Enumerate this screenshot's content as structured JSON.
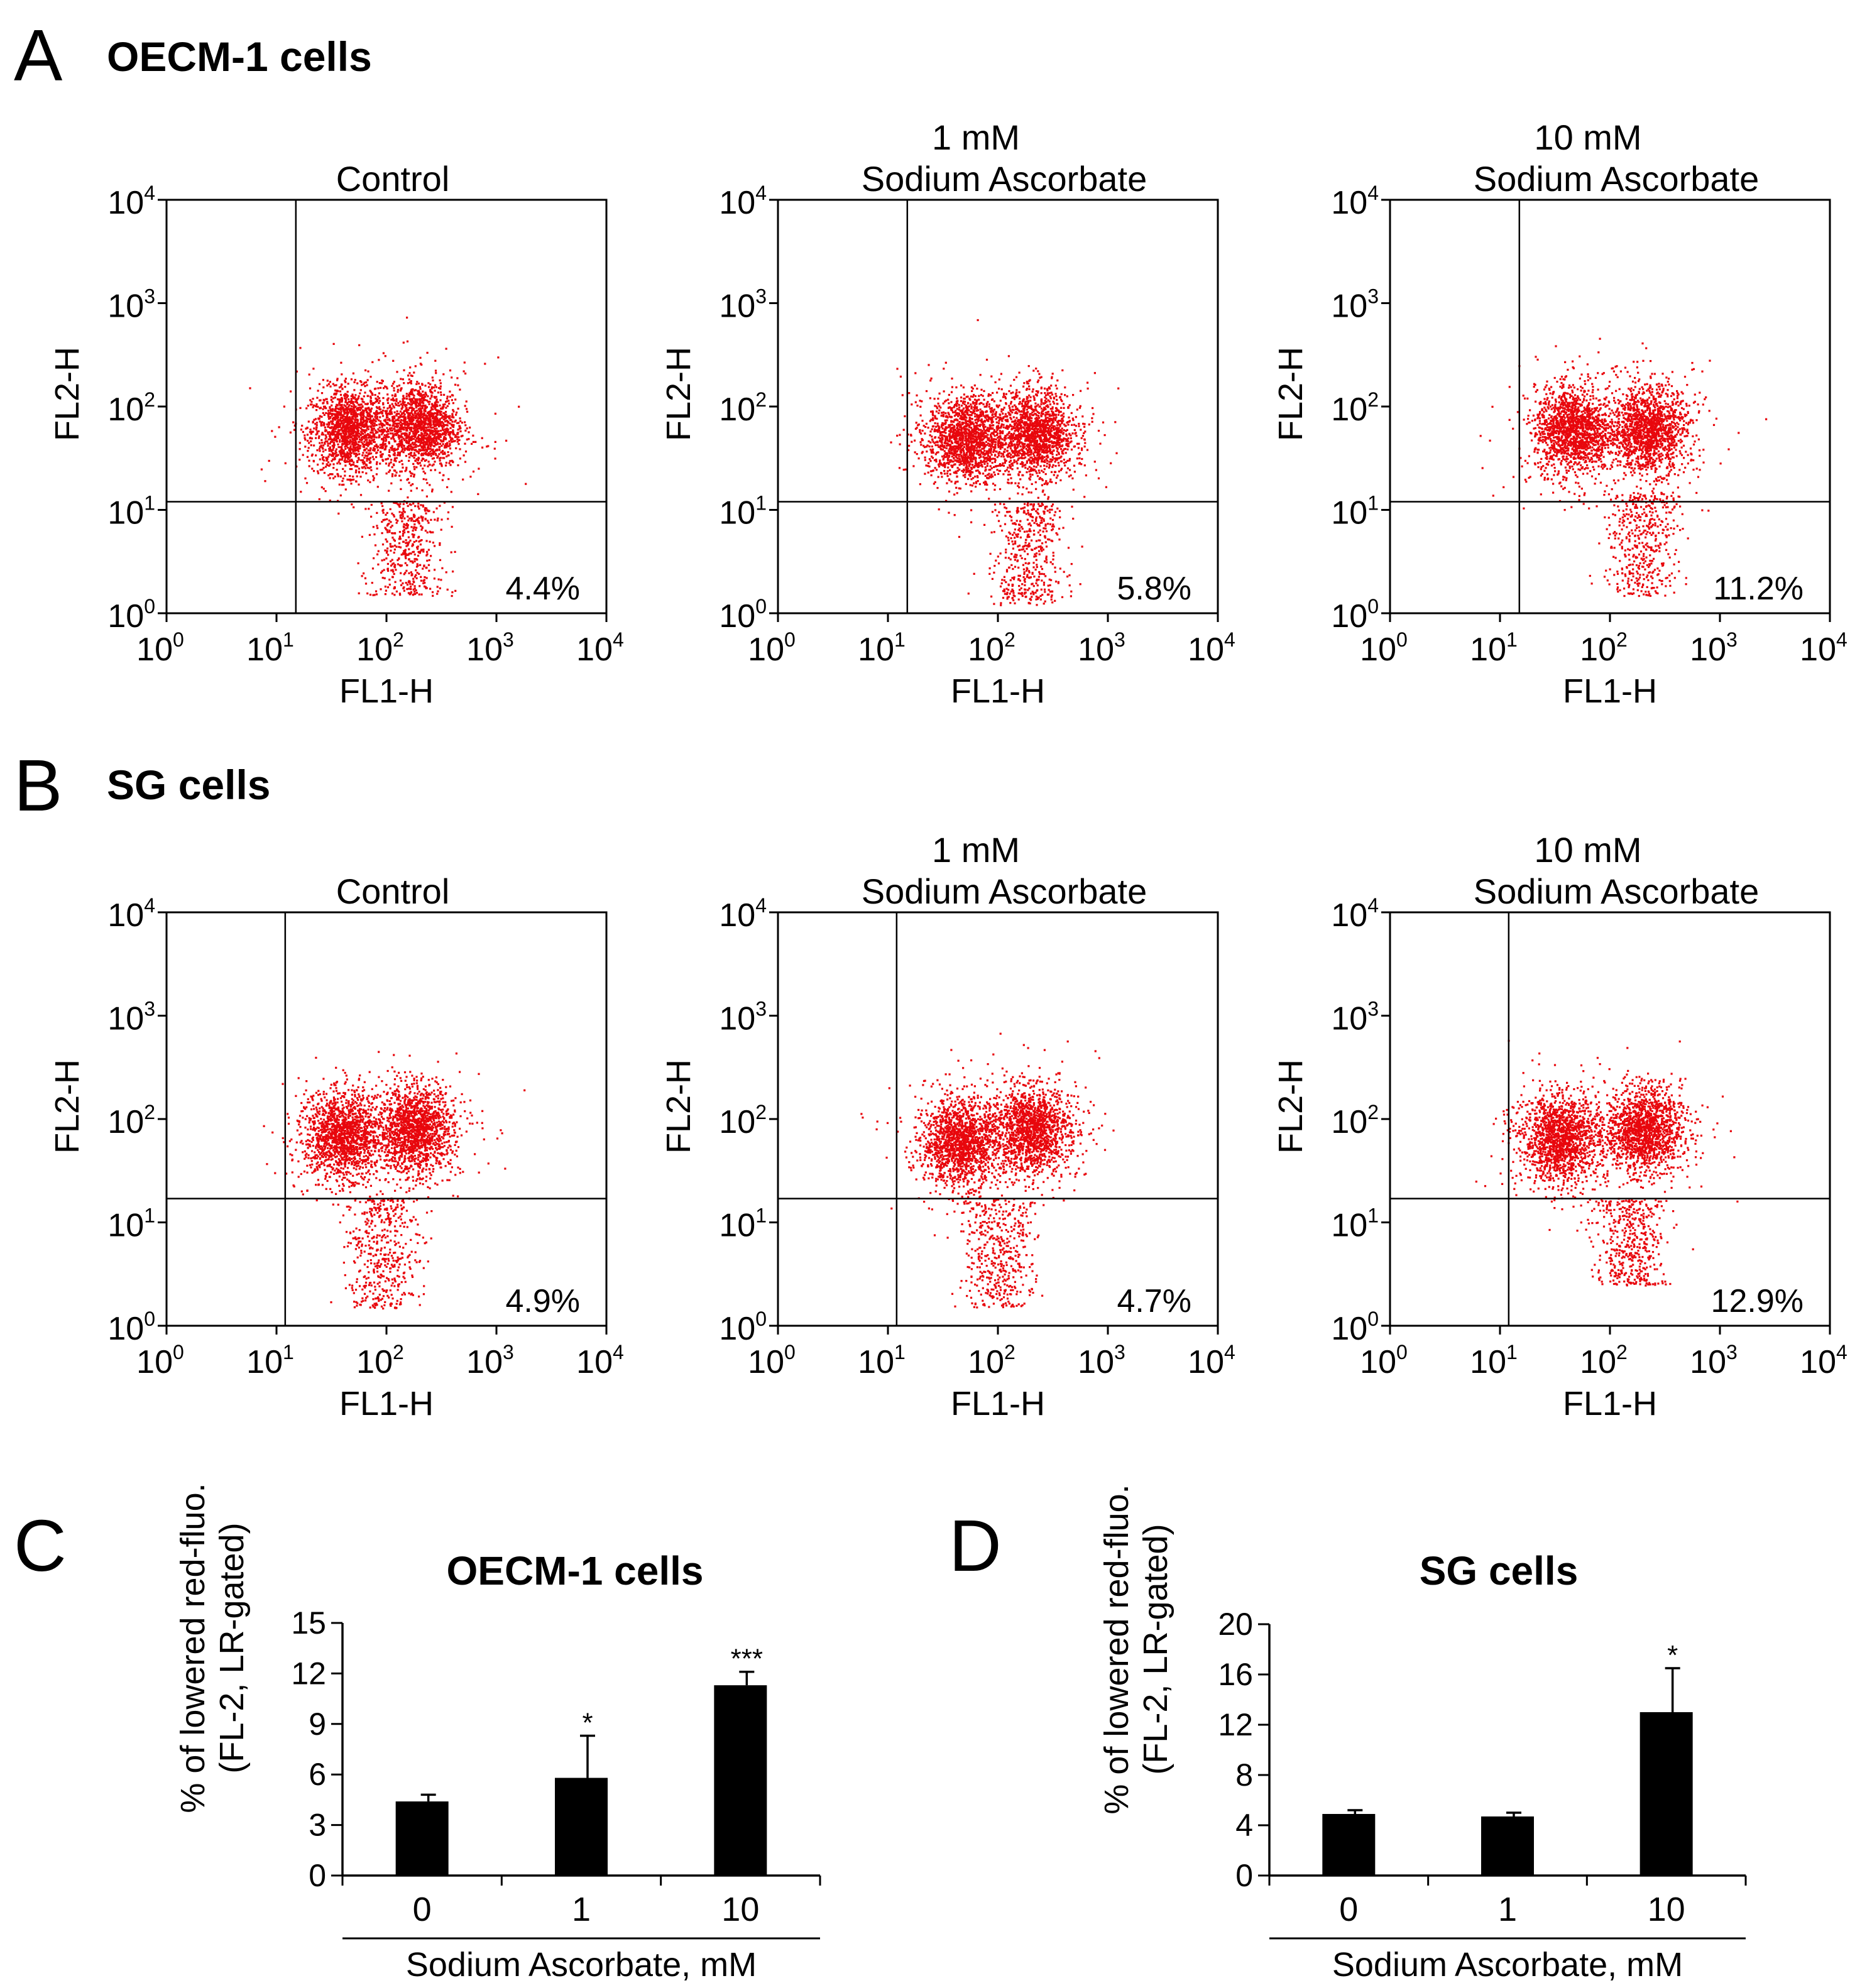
{
  "panels": {
    "a": {
      "letter": "A",
      "title": "OECM-1 cells"
    },
    "b": {
      "letter": "B",
      "title": "SG cells"
    },
    "c": {
      "letter": "C"
    },
    "d": {
      "letter": "D"
    }
  },
  "chart_data": [
    {
      "type": "scatter",
      "panel": "A",
      "title": "Control",
      "title_line1": "",
      "xlabel": "FL1-H",
      "ylabel": "FL2-H",
      "scale": "log",
      "xlim": [
        1,
        10000
      ],
      "ylim": [
        1,
        10000
      ],
      "x_ticks": [
        "10",
        "10",
        "10",
        "10",
        "10"
      ],
      "x_tick_exponents": [
        "0",
        "1",
        "2",
        "3",
        "4"
      ],
      "y_ticks": [
        "10",
        "10",
        "10",
        "10",
        "10"
      ],
      "y_tick_exponents": [
        "0",
        "1",
        "2",
        "3",
        "4"
      ],
      "quadrant_gate": {
        "x": 15,
        "y": 12
      },
      "lower_right_percent": "4.4%",
      "color": "#e8070d",
      "populations": [
        {
          "x": 45,
          "y": 60
        },
        {
          "x": 200,
          "y": 65
        }
      ],
      "tail": {
        "x": 150,
        "y_min": 1.5,
        "y_max": 12
      }
    },
    {
      "type": "scatter",
      "panel": "A",
      "title": "Sodium Ascorbate",
      "title_line1": "1 mM",
      "xlabel": "FL1-H",
      "ylabel": "FL2-H",
      "scale": "log",
      "xlim": [
        1,
        10000
      ],
      "ylim": [
        1,
        10000
      ],
      "x_ticks": [
        "10",
        "10",
        "10",
        "10",
        "10"
      ],
      "x_tick_exponents": [
        "0",
        "1",
        "2",
        "3",
        "4"
      ],
      "y_ticks": [
        "10",
        "10",
        "10",
        "10",
        "10"
      ],
      "y_tick_exponents": [
        "0",
        "1",
        "2",
        "3",
        "4"
      ],
      "quadrant_gate": {
        "x": 15,
        "y": 12
      },
      "lower_right_percent": "5.8%",
      "color": "#e8070d",
      "populations": [
        {
          "x": 50,
          "y": 50
        },
        {
          "x": 220,
          "y": 55
        }
      ],
      "tail": {
        "x": 180,
        "y_min": 1.2,
        "y_max": 12
      }
    },
    {
      "type": "scatter",
      "panel": "A",
      "title": "Sodium Ascorbate",
      "title_line1": "10 mM",
      "xlabel": "FL1-H",
      "ylabel": "FL2-H",
      "scale": "log",
      "xlim": [
        1,
        10000
      ],
      "ylim": [
        1,
        10000
      ],
      "x_ticks": [
        "10",
        "10",
        "10",
        "10",
        "10"
      ],
      "x_tick_exponents": [
        "0",
        "1",
        "2",
        "3",
        "4"
      ],
      "y_ticks": [
        "10",
        "10",
        "10",
        "10",
        "10"
      ],
      "y_tick_exponents": [
        "0",
        "1",
        "2",
        "3",
        "4"
      ],
      "quadrant_gate": {
        "x": 15,
        "y": 12
      },
      "lower_right_percent": "11.2%",
      "color": "#e8070d",
      "populations": [
        {
          "x": 45,
          "y": 60
        },
        {
          "x": 220,
          "y": 60
        }
      ],
      "tail": {
        "x": 200,
        "y_min": 1.5,
        "y_max": 15
      }
    },
    {
      "type": "scatter",
      "panel": "B",
      "title": "Control",
      "title_line1": "",
      "xlabel": "FL1-H",
      "ylabel": "FL2-H",
      "scale": "log",
      "xlim": [
        1,
        10000
      ],
      "ylim": [
        1,
        10000
      ],
      "x_ticks": [
        "10",
        "10",
        "10",
        "10",
        "10"
      ],
      "x_tick_exponents": [
        "0",
        "1",
        "2",
        "3",
        "4"
      ],
      "y_ticks": [
        "10",
        "10",
        "10",
        "10",
        "10"
      ],
      "y_tick_exponents": [
        "0",
        "1",
        "2",
        "3",
        "4"
      ],
      "quadrant_gate": {
        "x": 12,
        "y": 17
      },
      "lower_right_percent": "4.9%",
      "color": "#e8070d",
      "populations": [
        {
          "x": 40,
          "y": 70
        },
        {
          "x": 180,
          "y": 80
        }
      ],
      "tail": {
        "x": 90,
        "y_min": 1.5,
        "y_max": 17
      }
    },
    {
      "type": "scatter",
      "panel": "B",
      "title": "Sodium Ascorbate",
      "title_line1": "1 mM",
      "xlabel": "FL1-H",
      "ylabel": "FL2-H",
      "scale": "log",
      "xlim": [
        1,
        10000
      ],
      "ylim": [
        1,
        10000
      ],
      "x_ticks": [
        "10",
        "10",
        "10",
        "10",
        "10"
      ],
      "x_tick_exponents": [
        "0",
        "1",
        "2",
        "3",
        "4"
      ],
      "y_ticks": [
        "10",
        "10",
        "10",
        "10",
        "10"
      ],
      "y_tick_exponents": [
        "0",
        "1",
        "2",
        "3",
        "4"
      ],
      "quadrant_gate": {
        "x": 12,
        "y": 17
      },
      "lower_right_percent": "4.7%",
      "color": "#e8070d",
      "populations": [
        {
          "x": 45,
          "y": 60
        },
        {
          "x": 200,
          "y": 80
        }
      ],
      "tail": {
        "x": 100,
        "y_min": 1.5,
        "y_max": 17
      }
    },
    {
      "type": "scatter",
      "panel": "B",
      "title": "Sodium Ascorbate",
      "title_line1": "10 mM",
      "xlabel": "FL1-H",
      "ylabel": "FL2-H",
      "scale": "log",
      "xlim": [
        1,
        10000
      ],
      "ylim": [
        1,
        10000
      ],
      "x_ticks": [
        "10",
        "10",
        "10",
        "10",
        "10"
      ],
      "x_tick_exponents": [
        "0",
        "1",
        "2",
        "3",
        "4"
      ],
      "y_ticks": [
        "10",
        "10",
        "10",
        "10",
        "10"
      ],
      "y_tick_exponents": [
        "0",
        "1",
        "2",
        "3",
        "4"
      ],
      "quadrant_gate": {
        "x": 12,
        "y": 17
      },
      "lower_right_percent": "12.9%",
      "color": "#e8070d",
      "populations": [
        {
          "x": 35,
          "y": 65
        },
        {
          "x": 200,
          "y": 80
        }
      ],
      "tail": {
        "x": 150,
        "y_min": 2.5,
        "y_max": 17
      }
    },
    {
      "type": "bar",
      "panel": "C",
      "title": "OECM-1 cells",
      "categories": [
        "0",
        "1",
        "10"
      ],
      "values": [
        4.4,
        5.8,
        11.3
      ],
      "errors": [
        0.4,
        2.5,
        0.8
      ],
      "significance": [
        "",
        "*",
        "***"
      ],
      "ylim": [
        0,
        15
      ],
      "y_ticks": [
        "0",
        "3",
        "6",
        "9",
        "12",
        "15"
      ],
      "ylabel_line1": "% of lowered red-fluo.",
      "ylabel_line2": "(FL-2, LR-gated)",
      "xlabel": "Sodium Ascorbate, mM",
      "color": "#000000"
    },
    {
      "type": "bar",
      "panel": "D",
      "title": "SG cells",
      "categories": [
        "0",
        "1",
        "10"
      ],
      "values": [
        4.9,
        4.7,
        13.0
      ],
      "errors": [
        0.3,
        0.3,
        3.5
      ],
      "significance": [
        "",
        "",
        "*"
      ],
      "ylim": [
        0,
        20
      ],
      "y_ticks": [
        "0",
        "4",
        "8",
        "12",
        "16",
        "20"
      ],
      "ylabel_line1": "% of lowered red-fluo.",
      "ylabel_line2": "(FL-2, LR-gated)",
      "xlabel": "Sodium Ascorbate, mM",
      "color": "#000000"
    }
  ]
}
